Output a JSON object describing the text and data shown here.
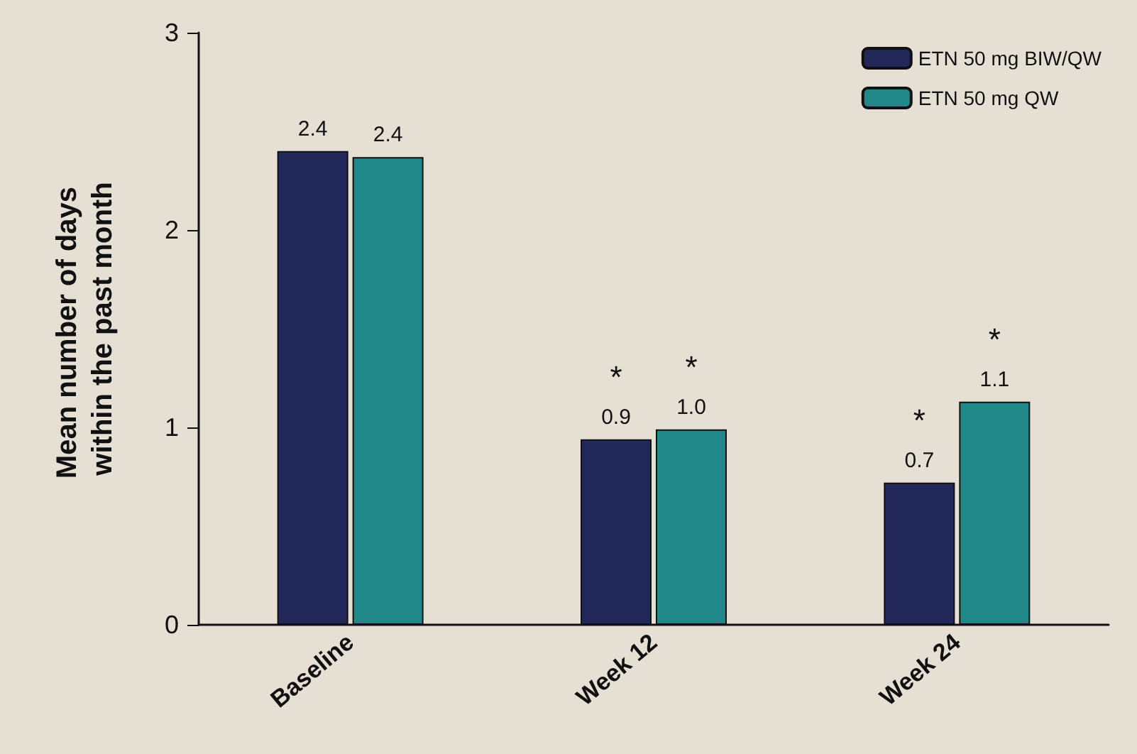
{
  "chart_data": {
    "type": "bar",
    "ylabel": "Mean number of days within the past month",
    "categories": [
      "Baseline",
      "Week 12",
      "Week 24"
    ],
    "series": [
      {
        "name": "ETN 50 mg BIW/QW",
        "color": "#22285a",
        "values": [
          2.4,
          0.94,
          0.72
        ],
        "value_labels": [
          "2.4",
          "0.9",
          "0.7"
        ]
      },
      {
        "name": "ETN 50 mg QW",
        "color": "#21888a",
        "values": [
          2.37,
          0.99,
          1.13
        ],
        "value_labels": [
          "2.4",
          "1.0",
          "1.1"
        ]
      }
    ],
    "ylim": [
      0,
      3
    ],
    "yticks": [
      0,
      1,
      2,
      3
    ],
    "grid": false,
    "legend": "top right",
    "annotations": [
      {
        "text": "*",
        "x": "Week 12",
        "y": 0.94
      },
      {
        "text": "*",
        "x": "Week 12",
        "y": 0.99
      },
      {
        "text": "*",
        "x": "Week 24",
        "y": 0.72
      },
      {
        "text": "*",
        "x": "Week 24",
        "y": 1.13
      }
    ]
  }
}
